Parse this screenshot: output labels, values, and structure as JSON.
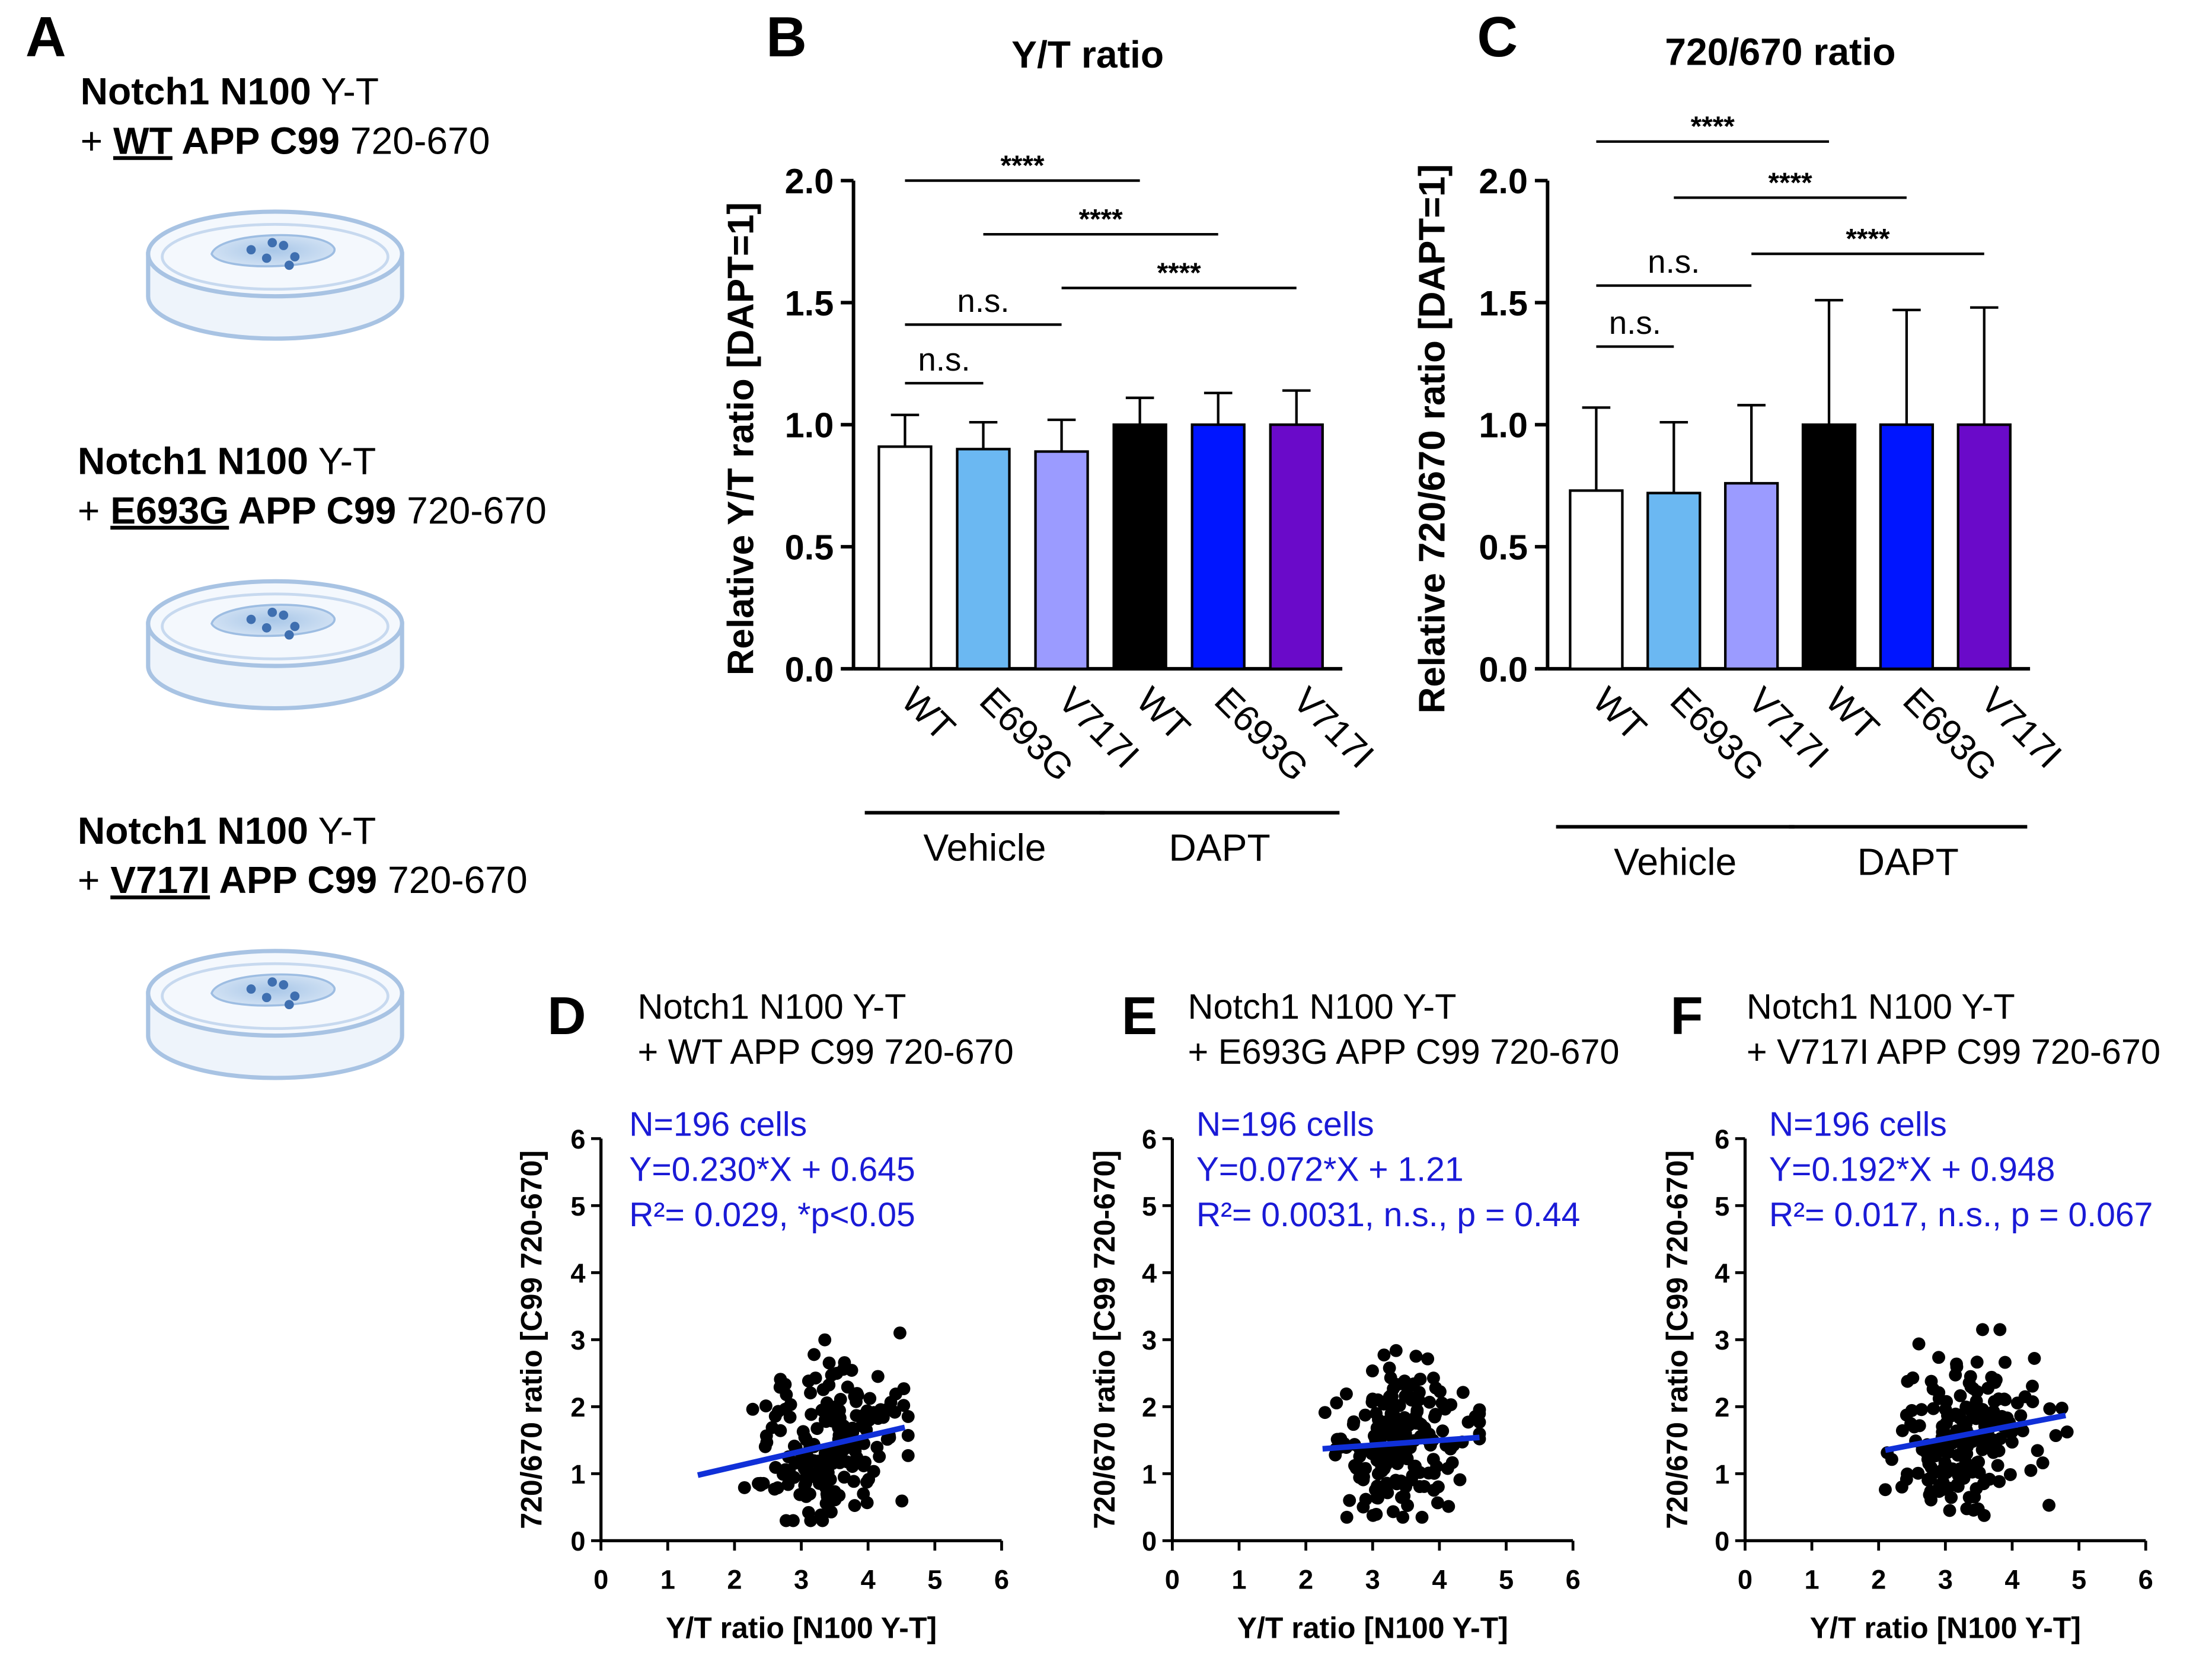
{
  "panelA": {
    "letter": "A",
    "conditions": [
      {
        "line1_bold": "Notch1 N100",
        "line1_rest": " Y-T",
        "plus": "+ ",
        "mutation": "WT",
        "app": " APP C99",
        "sensor": " 720-670"
      },
      {
        "line1_bold": "Notch1 N100",
        "line1_rest": " Y-T",
        "plus": "+ ",
        "mutation": "E693G",
        "app": " APP C99",
        "sensor": " 720-670"
      },
      {
        "line1_bold": "Notch1 N100",
        "line1_rest": " Y-T",
        "plus": "+ ",
        "mutation": "V717I",
        "app": " APP C99",
        "sensor": " 720-670"
      }
    ]
  },
  "chart_data": [
    {
      "id": "B",
      "type": "bar",
      "title": "Y/T ratio",
      "ylabel": "Relative Y/T ratio [DAPT=1]",
      "ylim": [
        0,
        2.0
      ],
      "yticks": [
        0.0,
        0.5,
        1.0,
        1.5,
        2.0
      ],
      "ytick_labels": [
        "0.0",
        "0.5",
        "1.0",
        "1.5",
        "2.0"
      ],
      "categories": [
        "WT",
        "E693G",
        "V717I",
        "WT",
        "E693G",
        "V717I"
      ],
      "values": [
        0.91,
        0.9,
        0.89,
        1.0,
        1.0,
        1.0
      ],
      "errors": [
        0.13,
        0.11,
        0.13,
        0.11,
        0.13,
        0.14
      ],
      "colors": [
        "#ffffff",
        "#6bb8f2",
        "#9b9bff",
        "#000000",
        "#0015ff",
        "#6a0ac9"
      ],
      "groups": [
        {
          "label": "Vehicle",
          "from": 0,
          "to": 2
        },
        {
          "label": "DAPT",
          "from": 3,
          "to": 5
        }
      ],
      "comparisons": [
        {
          "a": 0,
          "b": 3,
          "y": 2.0,
          "label": "****"
        },
        {
          "a": 1,
          "b": 4,
          "y": 1.78,
          "label": "****"
        },
        {
          "a": 2,
          "b": 5,
          "y": 1.56,
          "label": "****"
        },
        {
          "a": 0,
          "b": 2,
          "y": 1.41,
          "label": "n.s."
        },
        {
          "a": 0,
          "b": 1,
          "y": 1.17,
          "label": "n.s."
        }
      ]
    },
    {
      "id": "C",
      "type": "bar",
      "title": "720/670 ratio",
      "ylabel": "Relative 720/670 ratio [DAPT=1]",
      "ylim": [
        0,
        2.0
      ],
      "yticks": [
        0.0,
        0.5,
        1.0,
        1.5,
        2.0
      ],
      "ytick_labels": [
        "0.0",
        "0.5",
        "1.0",
        "1.5",
        "2.0"
      ],
      "categories": [
        "WT",
        "E693G",
        "V717I",
        "WT",
        "E693G",
        "V717I"
      ],
      "values": [
        0.73,
        0.72,
        0.76,
        1.0,
        1.0,
        1.0
      ],
      "errors": [
        0.34,
        0.29,
        0.32,
        0.51,
        0.47,
        0.48
      ],
      "colors": [
        "#ffffff",
        "#6bb8f2",
        "#9b9bff",
        "#000000",
        "#0015ff",
        "#6a0ac9"
      ],
      "groups": [
        {
          "label": "Vehicle",
          "from": 0,
          "to": 2
        },
        {
          "label": "DAPT",
          "from": 3,
          "to": 5
        }
      ],
      "comparisons": [
        {
          "a": 0,
          "b": 3,
          "y": 2.16,
          "label": "****"
        },
        {
          "a": 1,
          "b": 4,
          "y": 1.93,
          "label": "****"
        },
        {
          "a": 2,
          "b": 5,
          "y": 1.7,
          "label": "****"
        },
        {
          "a": 0,
          "b": 2,
          "y": 1.57,
          "label": "n.s."
        },
        {
          "a": 0,
          "b": 1,
          "y": 1.32,
          "label": "n.s."
        }
      ]
    },
    {
      "id": "D",
      "type": "scatter",
      "title_line1": "Notch1 N100 Y-T",
      "title_line2": "+ WT APP C99 720-670",
      "xlabel": "Y/T ratio [N100 Y-T]",
      "ylabel": "720/670 ratio [C99 720-670]",
      "xlim": [
        0,
        6
      ],
      "ylim": [
        0,
        6
      ],
      "xticks": [
        "0",
        "1",
        "2",
        "3",
        "4",
        "5",
        "6"
      ],
      "yticks": [
        "0",
        "1",
        "2",
        "3",
        "4",
        "5",
        "6"
      ],
      "stats": [
        "N=196 cells",
        "Y=0.230*X + 0.645",
        "R²= 0.029, *p<0.05"
      ],
      "fit": {
        "slope": 0.23,
        "intercept": 0.645,
        "x_range": [
          1.45,
          4.55
        ]
      },
      "n_points": 196,
      "x_mean": 3.45,
      "x_sd": 0.55,
      "y_mean": 1.44,
      "y_sd": 0.6,
      "x_clip": [
        1.45,
        4.6
      ],
      "y_clip": [
        0.3,
        3.1
      ]
    },
    {
      "id": "E",
      "type": "scatter",
      "title_line1": "Notch1 N100 Y-T",
      "title_line2": "+ E693G APP C99 720-670",
      "xlabel": "Y/T ratio [N100 Y-T]",
      "ylabel": "720/670 ratio [C99 720-670]",
      "xlim": [
        0,
        6
      ],
      "ylim": [
        0,
        6
      ],
      "xticks": [
        "0",
        "1",
        "2",
        "3",
        "4",
        "5",
        "6"
      ],
      "yticks": [
        "0",
        "1",
        "2",
        "3",
        "4",
        "5",
        "6"
      ],
      "stats": [
        "N=196 cells",
        "Y=0.072*X + 1.21",
        "R²= 0.0031, n.s., p = 0.44"
      ],
      "fit": {
        "slope": 0.072,
        "intercept": 1.21,
        "x_range": [
          2.25,
          4.6
        ]
      },
      "n_points": 196,
      "x_mean": 3.4,
      "x_sd": 0.48,
      "y_mean": 1.45,
      "y_sd": 0.55,
      "x_clip": [
        2.25,
        4.6
      ],
      "y_clip": [
        0.35,
        3.05
      ]
    },
    {
      "id": "F",
      "type": "scatter",
      "title_line1": "Notch1 N100 Y-T",
      "title_line2": "+ V717I APP C99 720-670",
      "xlabel": "Y/T ratio [N100 Y-T]",
      "ylabel": "720/670 ratio [C99 720-670]",
      "xlim": [
        0,
        6
      ],
      "ylim": [
        0,
        6
      ],
      "xticks": [
        "0",
        "1",
        "2",
        "3",
        "4",
        "5",
        "6"
      ],
      "yticks": [
        "0",
        "1",
        "2",
        "3",
        "4",
        "5",
        "6"
      ],
      "stats": [
        "N=196 cells",
        "Y=0.192*X + 0.948",
        "R²= 0.017, n.s., p = 0.067"
      ],
      "fit": {
        "slope": 0.192,
        "intercept": 0.948,
        "x_range": [
          2.1,
          4.8
        ]
      },
      "n_points": 196,
      "x_mean": 3.3,
      "x_sd": 0.52,
      "y_mean": 1.58,
      "y_sd": 0.6,
      "x_clip": [
        2.1,
        4.85
      ],
      "y_clip": [
        0.3,
        3.15
      ]
    }
  ]
}
